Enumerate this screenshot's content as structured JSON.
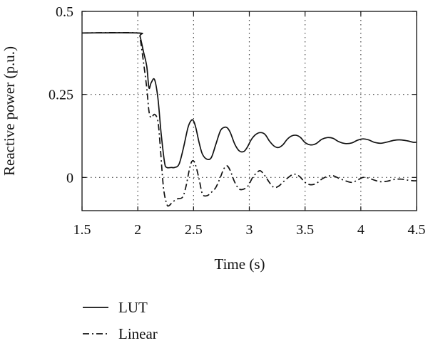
{
  "chart_data": {
    "type": "line",
    "xlabel": "Time (s)",
    "ylabel": "Reactive power (p.u.)",
    "xlim": [
      1.5,
      4.5
    ],
    "ylim": [
      -0.1,
      0.5
    ],
    "xticks": [
      1.5,
      2,
      2.5,
      3,
      3.5,
      4,
      4.5
    ],
    "xtick_labels": [
      "1.5",
      "2",
      "2.5",
      "3",
      "3.5",
      "4",
      "4.5"
    ],
    "yticks": [
      0,
      0.25,
      0.5
    ],
    "ytick_labels": [
      "0",
      "0.25",
      "0.5"
    ],
    "grid": "dotted",
    "legend_position": "below",
    "series": [
      {
        "name": "LUT",
        "style": "solid",
        "color": "#111111",
        "x": [
          1.5,
          2.0,
          2.02,
          2.05,
          2.08,
          2.1,
          2.12,
          2.15,
          2.18,
          2.21,
          2.24,
          2.26,
          2.3,
          2.33,
          2.37,
          2.41,
          2.45,
          2.48,
          2.5,
          2.52,
          2.55,
          2.58,
          2.62,
          2.66,
          2.7,
          2.74,
          2.77,
          2.8,
          2.83,
          2.87,
          2.91,
          2.95,
          2.98,
          3.02,
          3.06,
          3.1,
          3.14,
          3.18,
          3.22,
          3.26,
          3.3,
          3.34,
          3.38,
          3.42,
          3.46,
          3.5,
          3.55,
          3.6,
          3.65,
          3.7,
          3.75,
          3.8,
          3.86,
          3.92,
          3.97,
          4.02,
          4.07,
          4.12,
          4.18,
          4.24,
          4.3,
          4.36,
          4.42,
          4.47,
          4.5
        ],
        "y": [
          0.435,
          0.435,
          0.425,
          0.38,
          0.335,
          0.27,
          0.285,
          0.295,
          0.24,
          0.13,
          0.045,
          0.03,
          0.03,
          0.03,
          0.04,
          0.09,
          0.15,
          0.172,
          0.17,
          0.15,
          0.105,
          0.07,
          0.055,
          0.06,
          0.1,
          0.14,
          0.15,
          0.15,
          0.135,
          0.1,
          0.08,
          0.078,
          0.09,
          0.115,
          0.13,
          0.135,
          0.13,
          0.11,
          0.095,
          0.09,
          0.098,
          0.115,
          0.125,
          0.127,
          0.12,
          0.105,
          0.098,
          0.102,
          0.115,
          0.12,
          0.118,
          0.108,
          0.102,
          0.104,
          0.112,
          0.116,
          0.113,
          0.106,
          0.103,
          0.107,
          0.112,
          0.113,
          0.11,
          0.106,
          0.106
        ]
      },
      {
        "name": "Linear",
        "style": "dash-dot",
        "color": "#111111",
        "x": [
          1.5,
          2.0,
          2.02,
          2.05,
          2.08,
          2.1,
          2.12,
          2.15,
          2.18,
          2.2,
          2.23,
          2.26,
          2.28,
          2.31,
          2.35,
          2.4,
          2.43,
          2.46,
          2.48,
          2.5,
          2.52,
          2.55,
          2.58,
          2.62,
          2.66,
          2.7,
          2.74,
          2.77,
          2.8,
          2.83,
          2.87,
          2.91,
          2.95,
          2.99,
          3.03,
          3.07,
          3.1,
          3.14,
          3.18,
          3.22,
          3.26,
          3.3,
          3.35,
          3.4,
          3.45,
          3.5,
          3.55,
          3.6,
          3.65,
          3.7,
          3.75,
          3.8,
          3.86,
          3.92,
          3.97,
          4.02,
          4.07,
          4.12,
          4.18,
          4.24,
          4.3,
          4.36,
          4.42,
          4.47,
          4.5
        ],
        "y": [
          0.435,
          0.435,
          0.42,
          0.35,
          0.27,
          0.2,
          0.18,
          0.19,
          0.17,
          0.1,
          -0.03,
          -0.08,
          -0.085,
          -0.075,
          -0.065,
          -0.06,
          -0.03,
          0.02,
          0.045,
          0.05,
          0.035,
          -0.005,
          -0.05,
          -0.055,
          -0.045,
          -0.03,
          0.0,
          0.025,
          0.035,
          0.02,
          -0.015,
          -0.035,
          -0.035,
          -0.025,
          0.0,
          0.015,
          0.02,
          0.005,
          -0.015,
          -0.03,
          -0.027,
          -0.015,
          0.0,
          0.01,
          0.003,
          -0.015,
          -0.022,
          -0.018,
          -0.005,
          0.003,
          0.005,
          -0.002,
          -0.01,
          -0.015,
          -0.008,
          0.0,
          -0.002,
          -0.008,
          -0.013,
          -0.011,
          -0.006,
          -0.005,
          -0.008,
          -0.01,
          -0.01
        ]
      }
    ]
  }
}
